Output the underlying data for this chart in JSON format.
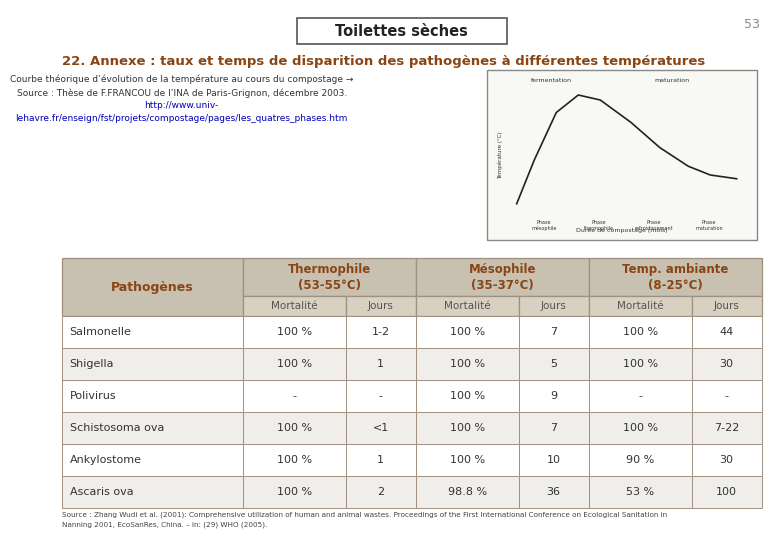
{
  "title": "Toilettes sèches",
  "page_number": "53",
  "section_title": "22. Annexe : taux et temps de disparition des pathogènes à différentes températures",
  "text_line1": "Courbe théorique d’évolution de la température au cours du compostage →",
  "text_line2": "Source : Thèse de F.FRANCOU de l’INA de Paris-Grignon, décembre 2003.",
  "text_line3": "http://www.univ-",
  "text_line4": "lehavre.fr/enseign/fst/projets/compostage/pages/les_quatres_phases.htm",
  "table_sub_headers": [
    "Mortalité",
    "Jours",
    "Mortalité",
    "Jours",
    "Mortalité",
    "Jours"
  ],
  "table_rows": [
    [
      "Salmonelle",
      "100 %",
      "1-2",
      "100 %",
      "7",
      "100 %",
      "44"
    ],
    [
      "Shigella",
      "100 %",
      "1",
      "100 %",
      "5",
      "100 %",
      "30"
    ],
    [
      "Polivirus",
      "-",
      "-",
      "100 %",
      "9",
      "-",
      "-"
    ],
    [
      "Schistosoma ova",
      "100 %",
      "<1",
      "100 %",
      "7",
      "100 %",
      "7-22"
    ],
    [
      "Ankylostome",
      "100 %",
      "1",
      "100 %",
      "10",
      "90 %",
      "30"
    ],
    [
      "Ascaris ova",
      "100 %",
      "2",
      "98.8 %",
      "36",
      "53 %",
      "100"
    ]
  ],
  "footer_line1": "Source : Zhang Wudi et al. (2001): Comprehensive utilization of human and animal wastes. Proceedings of the First International Conference on Ecological Sanitation in",
  "footer_line2": "Nanning 2001, EcoSanRes, China. – In: (29) WHO (2005).",
  "header_bg": "#C8C0B0",
  "subheader_bg": "#D8D0C0",
  "row_bg_odd": "#FFFFFF",
  "row_bg_even": "#F0EEEA",
  "border_color": "#A09080",
  "title_box_edge": "#555555",
  "section_title_color": "#8B4513",
  "header_text_color": "#8B4513",
  "body_text_color": "#333333",
  "link_color": "#0000BB",
  "page_num_color": "#888888"
}
